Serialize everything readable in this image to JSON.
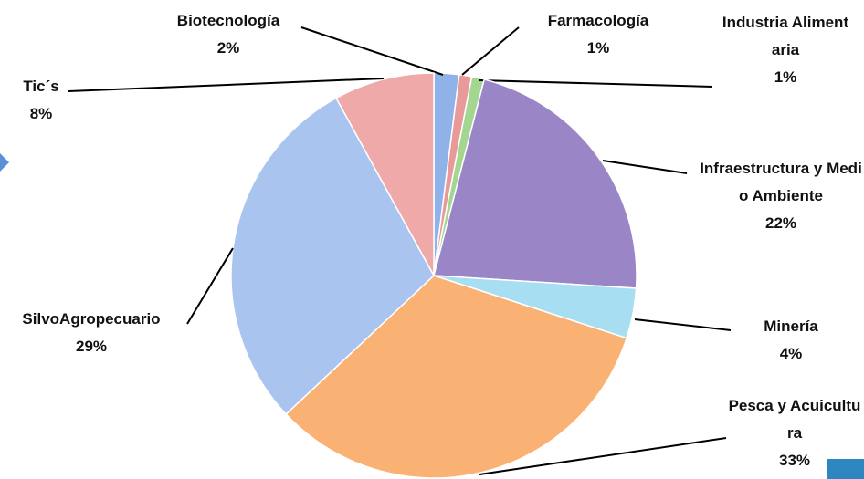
{
  "chart_data": {
    "type": "pie",
    "categories": [
      "Biotecnología",
      "Farmacología",
      "Industria Alimentaria",
      "Infraestructura y Medio Ambiente",
      "Minería",
      "Pesca y Acuicultura",
      "SilvoAgropecuario",
      "Tic´s"
    ],
    "values": [
      2,
      1,
      1,
      22,
      4,
      33,
      29,
      8
    ],
    "value_labels": [
      "2%",
      "1%",
      "1%",
      "22%",
      "4%",
      "33%",
      "29%",
      "8%"
    ],
    "colors": [
      "#8fb3e8",
      "#e89a9a",
      "#a3d68f",
      "#9a86c6",
      "#a8def2",
      "#f9b274",
      "#a9c5ef",
      "#f0a9a9"
    ]
  }
}
